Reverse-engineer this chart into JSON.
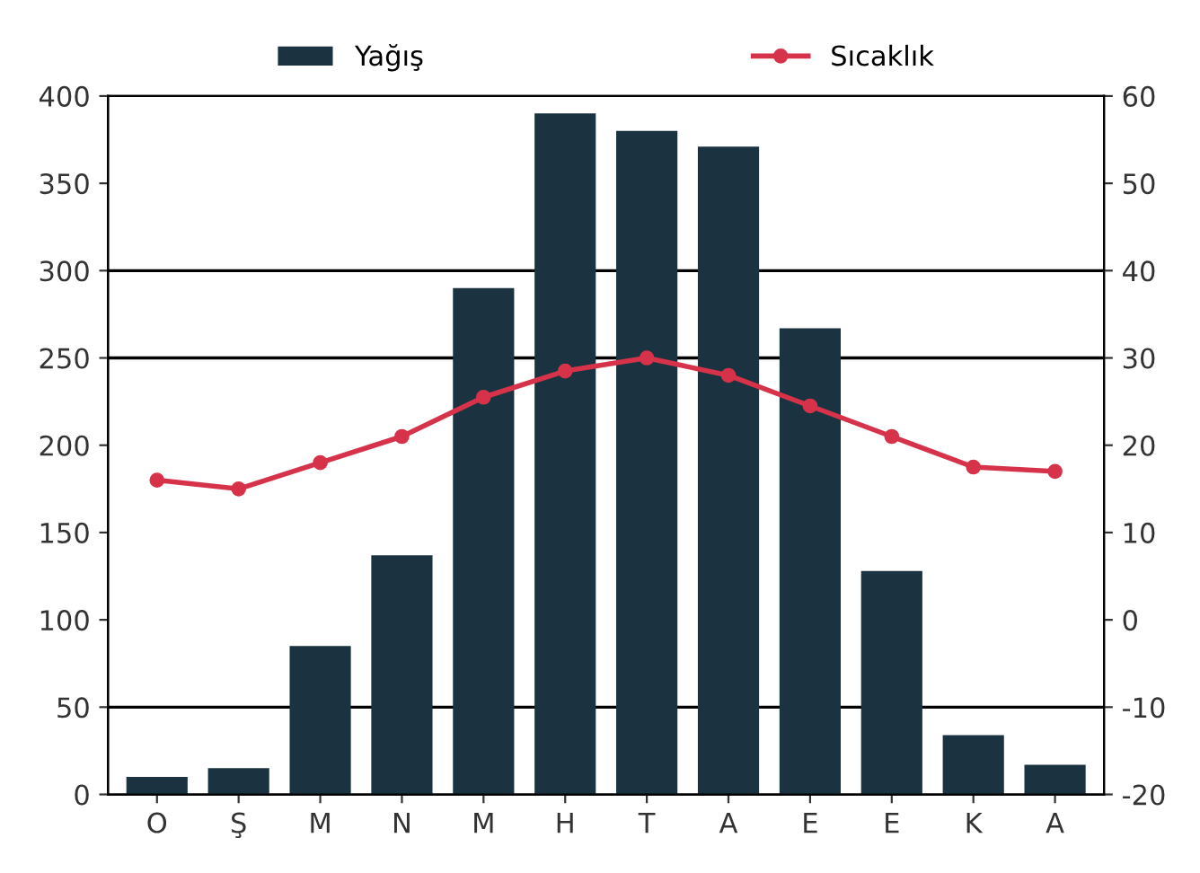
{
  "chart_data": {
    "type": "bar",
    "categories": [
      "O",
      "Ş",
      "M",
      "N",
      "M",
      "H",
      "T",
      "A",
      "E",
      "E",
      "K",
      "A"
    ],
    "series": [
      {
        "name": "Yağış",
        "color": "#1b3340",
        "values": [
          10,
          15,
          85,
          137,
          290,
          390,
          380,
          371,
          267,
          128,
          34,
          17
        ]
      },
      {
        "name": "Sıcaklık",
        "type": "line",
        "axis": "y2",
        "color": "#d6334a",
        "marker": "circle",
        "values": [
          16,
          15,
          18,
          21,
          25.5,
          28.5,
          30,
          28,
          24.5,
          21,
          17.5,
          17
        ]
      }
    ],
    "ylim": [
      0,
      400
    ],
    "yticks": [
      0,
      50,
      100,
      150,
      200,
      250,
      300,
      350,
      400
    ],
    "y2lim": [
      -20,
      60
    ],
    "y2ticks": [
      -20,
      -10,
      0,
      10,
      20,
      30,
      40,
      50,
      60
    ],
    "ref_lines": [
      {
        "axis": "y",
        "value": 300,
        "color": "#000000"
      },
      {
        "axis": "y",
        "value": 250,
        "color": "#000000"
      },
      {
        "axis": "y",
        "value": 50,
        "color": "#000000"
      }
    ],
    "grid": false,
    "legend": "top"
  }
}
